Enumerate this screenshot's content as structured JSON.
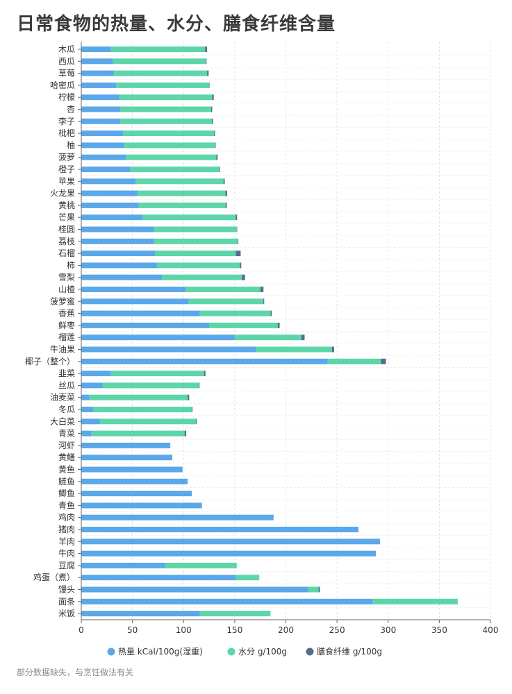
{
  "chart_data": {
    "type": "bar",
    "orientation": "horizontal",
    "stacked": true,
    "title": "日常食物的热量、水分、膳食纤维含量",
    "footnote": "部分数据缺失，与烹饪做法有关",
    "categories": [
      "木瓜",
      "西瓜",
      "草莓",
      "哈密瓜",
      "柠檬",
      "杏",
      "李子",
      "枇杷",
      "柚",
      "菠萝",
      "橙子",
      "苹果",
      "火龙果",
      "黄桃",
      "芒果",
      "桂圆",
      "荔枝",
      "石榴",
      "柿",
      "雪梨",
      "山楂",
      "菠萝蜜",
      "香蕉",
      "鲜枣",
      "榴莲",
      "牛油果",
      "椰子（整个）",
      "韭菜",
      "丝瓜",
      "油麦菜",
      "冬瓜",
      "大白菜",
      "青菜",
      "河虾",
      "黄鳝",
      "黄鱼",
      "鲢鱼",
      "鲫鱼",
      "青鱼",
      "鸡肉",
      "猪肉",
      "羊肉",
      "牛肉",
      "豆腐",
      "鸡蛋（煮）",
      "馒头",
      "面条",
      "米饭"
    ],
    "series": [
      {
        "name": "热量 kCal/100g(湿重)",
        "color": "#5aa7ea",
        "values": [
          29,
          31,
          32,
          34,
          37,
          38,
          38,
          41,
          42,
          44,
          48,
          53,
          55,
          56,
          60,
          71,
          71,
          72,
          74,
          79,
          102,
          105,
          116,
          125,
          150,
          171,
          241,
          29,
          21,
          8,
          12,
          18,
          10,
          87,
          89,
          99,
          104,
          108,
          118,
          188,
          271,
          292,
          288,
          82,
          151,
          222,
          285,
          116
        ]
      },
      {
        "name": "水分 g/100g",
        "color": "#5cd6a9",
        "values": [
          92,
          91,
          91,
          91,
          91,
          89,
          90,
          89,
          89,
          88,
          87,
          86,
          86,
          85,
          91,
          81,
          82,
          79,
          81,
          78,
          73,
          73,
          69,
          67,
          65,
          74,
          52,
          91,
          94,
          96,
          96,
          94,
          91,
          null,
          null,
          null,
          null,
          null,
          null,
          null,
          null,
          null,
          null,
          70,
          23,
          10,
          83,
          69
        ]
      },
      {
        "name": "膳食纤维 g/100g",
        "color": "#566e8c",
        "values": [
          2,
          0.5,
          1.5,
          0.3,
          1.5,
          1,
          0.9,
          0.8,
          0.4,
          1.3,
          0.6,
          1.2,
          1.6,
          1.2,
          1.3,
          0.4,
          0.5,
          4.8,
          1.4,
          3.1,
          3.1,
          0.8,
          1.2,
          1.9,
          3.3,
          2.1,
          4.8,
          1.4,
          0.6,
          1.5,
          0.7,
          0.8,
          1.6,
          null,
          null,
          null,
          null,
          null,
          null,
          null,
          null,
          null,
          null,
          null,
          null,
          1.3,
          null,
          null
        ]
      }
    ],
    "xlim": [
      0,
      400
    ],
    "xticks": [
      0,
      50,
      100,
      150,
      200,
      250,
      300,
      350,
      400
    ],
    "grid": true,
    "legend_position": "bottom-center"
  }
}
